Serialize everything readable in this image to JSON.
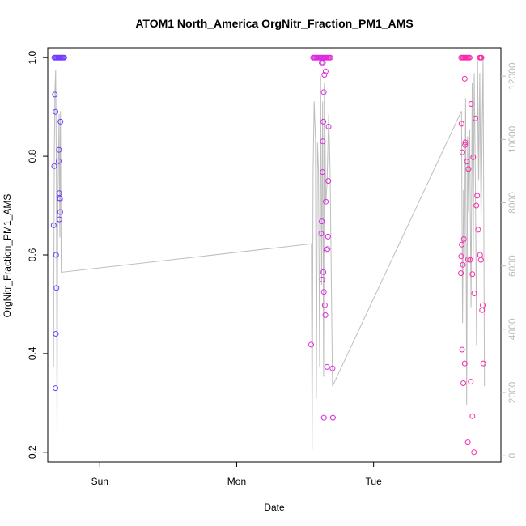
{
  "chart_data": {
    "type": "scatter",
    "title": "ATOM1 North_America OrgNitr_Fraction_PM1_AMS",
    "xlabel": "Date",
    "ylabel": "OrgNitr_Fraction_PM1_AMS",
    "x_ticks": [
      {
        "label": "Sun",
        "day": 1.0
      },
      {
        "label": "Mon",
        "day": 2.0
      },
      {
        "label": "Tue",
        "day": 3.0
      }
    ],
    "xlim_days": [
      0.62,
      3.93
    ],
    "ylim": [
      0.18,
      1.02
    ],
    "y_ticks": [
      0.2,
      0.4,
      0.6,
      0.8,
      1.0
    ],
    "ylim_right": [
      -200,
      12900
    ],
    "y_ticks_right": [
      0,
      2000,
      4000,
      6000,
      8000,
      10000,
      12000
    ],
    "grid": false,
    "legend": "none",
    "colors": {
      "point_start": "#6a3cff",
      "point_mid": "#d02cf0",
      "point_end": "#ff2aa0",
      "line": "#bdbdbd",
      "right_axis": "#bdbdbd"
    },
    "series": [
      {
        "points": [
          [
            0.668,
            1.0
          ],
          [
            0.675,
            1.0
          ],
          [
            0.682,
            1.0
          ],
          [
            0.689,
            1.0
          ],
          [
            0.696,
            1.0
          ],
          [
            0.703,
            1.0
          ],
          [
            0.711,
            1.0
          ],
          [
            0.718,
            1.0
          ],
          [
            0.725,
            1.0
          ],
          [
            0.733,
            1.0
          ],
          [
            0.74,
            1.0
          ],
          [
            0.663,
            0.66
          ],
          [
            0.667,
            0.78
          ],
          [
            0.672,
            0.925
          ],
          [
            0.677,
            0.89
          ],
          [
            0.681,
            0.6
          ],
          [
            0.684,
            0.533
          ],
          [
            0.679,
            0.44
          ],
          [
            0.676,
            0.33
          ],
          [
            0.702,
            0.813
          ],
          [
            0.7,
            0.79
          ],
          [
            0.704,
            0.725
          ],
          [
            0.707,
            0.715
          ],
          [
            0.709,
            0.713
          ],
          [
            0.705,
            0.672
          ],
          [
            0.711,
            0.687
          ],
          [
            0.713,
            0.87
          ],
          [
            2.544,
            0.418
          ],
          [
            2.558,
            1.0
          ],
          [
            2.565,
            1.0
          ],
          [
            2.572,
            1.0
          ],
          [
            2.58,
            1.0
          ],
          [
            2.587,
            1.0
          ],
          [
            2.595,
            1.0
          ],
          [
            2.602,
            1.0
          ],
          [
            2.61,
            1.0
          ],
          [
            2.617,
            1.0
          ],
          [
            2.624,
            1.0
          ],
          [
            2.631,
            1.0
          ],
          [
            2.638,
            1.0
          ],
          [
            2.645,
            1.0
          ],
          [
            2.652,
            1.0
          ],
          [
            2.66,
            1.0
          ],
          [
            2.668,
            1.0
          ],
          [
            2.676,
            1.0
          ],
          [
            2.684,
            1.0
          ],
          [
            2.62,
            0.99
          ],
          [
            2.63,
            0.99
          ],
          [
            2.64,
            0.965
          ],
          [
            2.65,
            0.972
          ],
          [
            2.636,
            0.93
          ],
          [
            2.633,
            0.87
          ],
          [
            2.629,
            0.83
          ],
          [
            2.627,
            0.768
          ],
          [
            2.622,
            0.668
          ],
          [
            2.617,
            0.643
          ],
          [
            2.625,
            0.55
          ],
          [
            2.633,
            0.565
          ],
          [
            2.637,
            0.525
          ],
          [
            2.644,
            0.498
          ],
          [
            2.648,
            0.478
          ],
          [
            2.651,
            0.708
          ],
          [
            2.655,
            0.61
          ],
          [
            2.664,
            0.612
          ],
          [
            2.667,
            0.637
          ],
          [
            2.669,
            0.75
          ],
          [
            2.671,
            0.86
          ],
          [
            2.66,
            0.373
          ],
          [
            2.7,
            0.37
          ],
          [
            2.703,
            0.27
          ],
          [
            2.637,
            0.27
          ],
          [
            3.64,
            1.0
          ],
          [
            3.648,
            1.0
          ],
          [
            3.655,
            1.0
          ],
          [
            3.662,
            1.0
          ],
          [
            3.67,
            1.0
          ],
          [
            3.678,
            1.0
          ],
          [
            3.686,
            1.0
          ],
          [
            3.694,
            1.0
          ],
          [
            3.702,
            1.0
          ],
          [
            3.776,
            1.0
          ],
          [
            3.782,
            1.0
          ],
          [
            3.788,
            1.0
          ],
          [
            3.642,
            0.866
          ],
          [
            3.648,
            0.808
          ],
          [
            3.666,
            0.957
          ],
          [
            3.67,
            0.828
          ],
          [
            3.668,
            0.823
          ],
          [
            3.681,
            0.789
          ],
          [
            3.693,
            0.774
          ],
          [
            3.712,
            0.906
          ],
          [
            3.728,
            0.798
          ],
          [
            3.744,
            0.877
          ],
          [
            3.757,
            0.72
          ],
          [
            3.751,
            0.7
          ],
          [
            3.764,
            0.651
          ],
          [
            3.778,
            0.6
          ],
          [
            3.784,
            0.59
          ],
          [
            3.797,
            0.498
          ],
          [
            3.792,
            0.488
          ],
          [
            3.801,
            0.38
          ],
          [
            3.644,
            0.621
          ],
          [
            3.64,
            0.597
          ],
          [
            3.659,
            0.632
          ],
          [
            3.652,
            0.58
          ],
          [
            3.638,
            0.563
          ],
          [
            3.69,
            0.591
          ],
          [
            3.705,
            0.59
          ],
          [
            3.722,
            0.561
          ],
          [
            3.735,
            0.522
          ],
          [
            3.646,
            0.408
          ],
          [
            3.666,
            0.38
          ],
          [
            3.656,
            0.34
          ],
          [
            3.71,
            0.343
          ],
          [
            3.722,
            0.273
          ],
          [
            3.688,
            0.22
          ],
          [
            3.734,
            0.2
          ]
        ]
      },
      {
        "axis": "right",
        "points": [
          [
            0.662,
            2800
          ],
          [
            0.668,
            9600
          ],
          [
            0.673,
            11600
          ],
          [
            0.678,
            12200
          ],
          [
            0.683,
            8700
          ],
          [
            0.688,
            500
          ],
          [
            0.692,
            7300
          ],
          [
            0.698,
            9300
          ],
          [
            0.703,
            10800
          ],
          [
            0.708,
            6900
          ],
          [
            0.713,
            10900
          ],
          [
            0.718,
            5800
          ],
          [
            2.546,
            6700
          ],
          [
            2.551,
            200
          ],
          [
            2.558,
            9000
          ],
          [
            2.566,
            11200
          ],
          [
            2.575,
            10000
          ],
          [
            2.582,
            1800
          ],
          [
            2.59,
            9900
          ],
          [
            2.598,
            9000
          ],
          [
            2.606,
            2800
          ],
          [
            2.613,
            12000
          ],
          [
            2.62,
            5400
          ],
          [
            2.628,
            11200
          ],
          [
            2.635,
            2500
          ],
          [
            2.64,
            11800
          ],
          [
            2.651,
            8000
          ],
          [
            2.66,
            8600
          ],
          [
            2.672,
            10800
          ],
          [
            2.682,
            9000
          ],
          [
            2.7,
            2200
          ],
          [
            3.642,
            10900
          ],
          [
            3.65,
            4200
          ],
          [
            3.657,
            8400
          ],
          [
            3.664,
            6300
          ],
          [
            3.672,
            11300
          ],
          [
            3.68,
            1600
          ],
          [
            3.687,
            10100
          ],
          [
            3.694,
            7700
          ],
          [
            3.702,
            10300
          ],
          [
            3.712,
            4700
          ],
          [
            3.72,
            11800
          ],
          [
            3.728,
            6200
          ],
          [
            3.735,
            12100
          ],
          [
            3.743,
            8900
          ],
          [
            3.752,
            3500
          ],
          [
            3.76,
            12500
          ],
          [
            3.768,
            8700
          ],
          [
            3.776,
            12100
          ],
          [
            3.785,
            7500
          ],
          [
            3.8,
            12600
          ],
          [
            3.81,
            2200
          ]
        ]
      }
    ]
  }
}
